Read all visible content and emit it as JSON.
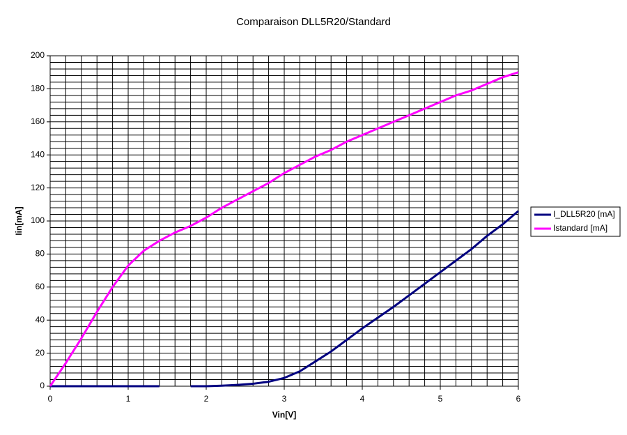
{
  "chart_data": {
    "type": "line",
    "title": "Comparaison DLL5R20/Standard",
    "x_label": "Vin[V]",
    "y_label": "Iin[mA]",
    "x": [
      0,
      0.2,
      0.4,
      0.6,
      0.8,
      1,
      1.2,
      1.4,
      1.6,
      1.8,
      2,
      2.2,
      2.4,
      2.6,
      2.8,
      3,
      3.2,
      3.4,
      3.6,
      3.8,
      4,
      4.2,
      4.4,
      4.6,
      4.8,
      5,
      5.2,
      5.4,
      5.6,
      5.8,
      6
    ],
    "series": [
      {
        "name": "I_DLL5R20 [mA]",
        "color": "#000080",
        "values": [
          0,
          0,
          0,
          0,
          0,
          0,
          0,
          0,
          null,
          0,
          0,
          0.3,
          0.8,
          1.5,
          2.7,
          5,
          9,
          15,
          21,
          28,
          35,
          41.5,
          48,
          55,
          62,
          69,
          76,
          83,
          91,
          98,
          106
        ]
      },
      {
        "name": "Istandard [mA]",
        "color": "#ff00ff",
        "values": [
          0,
          14,
          29,
          45,
          60,
          73,
          82,
          88,
          93,
          97,
          102,
          108,
          113,
          118,
          123,
          129,
          134,
          139,
          143,
          148,
          152,
          156,
          160,
          164,
          168,
          172,
          176,
          179,
          183,
          187,
          190
        ]
      }
    ],
    "xlim": [
      0,
      6
    ],
    "xticks": [
      0,
      1,
      2,
      3,
      4,
      5,
      6
    ],
    "ylim": [
      0,
      200
    ],
    "yticks": [
      0,
      20,
      40,
      60,
      80,
      100,
      120,
      140,
      160,
      180,
      200
    ],
    "grid": true,
    "x_minor_step": 0.2,
    "y_minor_step": 4,
    "legend": "right"
  }
}
